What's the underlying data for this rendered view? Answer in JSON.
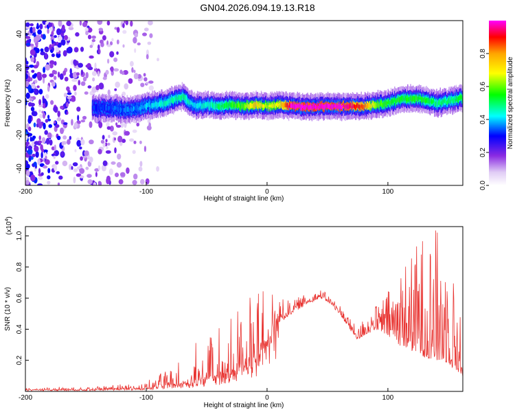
{
  "title": "GN04.2026.094.19.13.R18",
  "chart_data": [
    {
      "type": "heatmap",
      "xlabel": "Height of straight line (km)",
      "ylabel": "Frequency (Hz)",
      "xlim": [
        -200,
        162
      ],
      "ylim": [
        -50,
        48
      ],
      "xticks": [
        -200,
        -100,
        0,
        100
      ],
      "yticks": [
        -40,
        -20,
        0,
        20,
        40
      ],
      "colorbar": {
        "label": "Normalized spectral amplitude",
        "range": [
          0,
          1
        ],
        "ticks": [
          "0.0",
          "0.2",
          "0.4",
          "0.6",
          "0.8"
        ],
        "colormap": [
          "#ffffff",
          "#e6d5f5",
          "#8a2be2",
          "#0000ff",
          "#00ffff",
          "#00ff00",
          "#ffff00",
          "#ffa500",
          "#ff0000",
          "#ff00ff"
        ]
      },
      "ridge": {
        "x": [
          -145,
          -130,
          -115,
          -100,
          -85,
          -70,
          -60,
          -50,
          -40,
          -30,
          -20,
          -10,
          0,
          10,
          20,
          40,
          60,
          80,
          90,
          100,
          110,
          120,
          130,
          140,
          150,
          162
        ],
        "y": [
          -4,
          -4,
          -5,
          -3,
          -1,
          3,
          -3,
          -2,
          -3,
          -2,
          -3,
          -2,
          -3,
          -2,
          -3,
          -3,
          -3,
          -3,
          -2,
          -1,
          1,
          2,
          1,
          -1,
          0,
          2
        ],
        "peak_amplitude": [
          0.3,
          0.35,
          0.35,
          0.4,
          0.45,
          0.5,
          0.4,
          0.45,
          0.5,
          0.55,
          0.6,
          0.75,
          0.65,
          0.7,
          1.0,
          1.0,
          1.0,
          0.85,
          0.6,
          0.55,
          0.55,
          0.55,
          0.55,
          0.5,
          0.5,
          0.55
        ]
      },
      "noise_region": {
        "x_range": [
          -200,
          -90
        ],
        "amplitude": 0.2
      }
    },
    {
      "type": "line",
      "xlabel": "Height of straight line (km)",
      "ylabel": "SNR (10 * v/v)",
      "y_multiplier": "(x10",
      "y_multiplier_exp": "4",
      "y_multiplier_close": ")",
      "xlim": [
        -200,
        162
      ],
      "ylim": [
        0,
        1.06
      ],
      "xticks": [
        -200,
        -100,
        0,
        100
      ],
      "yticks": [
        "0.2",
        "0.4",
        "0.6",
        "0.8",
        "1.0"
      ],
      "series": [
        {
          "color": "#e8322f",
          "envelope_x": [
            -200,
            -150,
            -110,
            -100,
            -90,
            -80,
            -70,
            -60,
            -50,
            -40,
            -30,
            -20,
            -10,
            0,
            10,
            20,
            30,
            40,
            45,
            50,
            60,
            70,
            75,
            80,
            90,
            100,
            110,
            120,
            130,
            140,
            150,
            162
          ],
          "baseline": [
            0.01,
            0.01,
            0.02,
            0.02,
            0.03,
            0.04,
            0.05,
            0.06,
            0.08,
            0.1,
            0.12,
            0.16,
            0.22,
            0.32,
            0.44,
            0.5,
            0.55,
            0.59,
            0.6,
            0.58,
            0.5,
            0.38,
            0.33,
            0.36,
            0.4,
            0.36,
            0.3,
            0.26,
            0.22,
            0.2,
            0.18,
            0.1
          ],
          "peaks": [
            0.02,
            0.03,
            0.05,
            0.06,
            0.1,
            0.18,
            0.25,
            0.32,
            0.4,
            0.48,
            0.55,
            0.62,
            0.68,
            0.72,
            0.6,
            0.58,
            0.62,
            0.64,
            0.66,
            0.62,
            0.56,
            0.46,
            0.4,
            0.48,
            0.55,
            0.65,
            0.82,
            0.9,
            1.05,
            1.06,
            0.95,
            0.4
          ]
        }
      ]
    }
  ]
}
